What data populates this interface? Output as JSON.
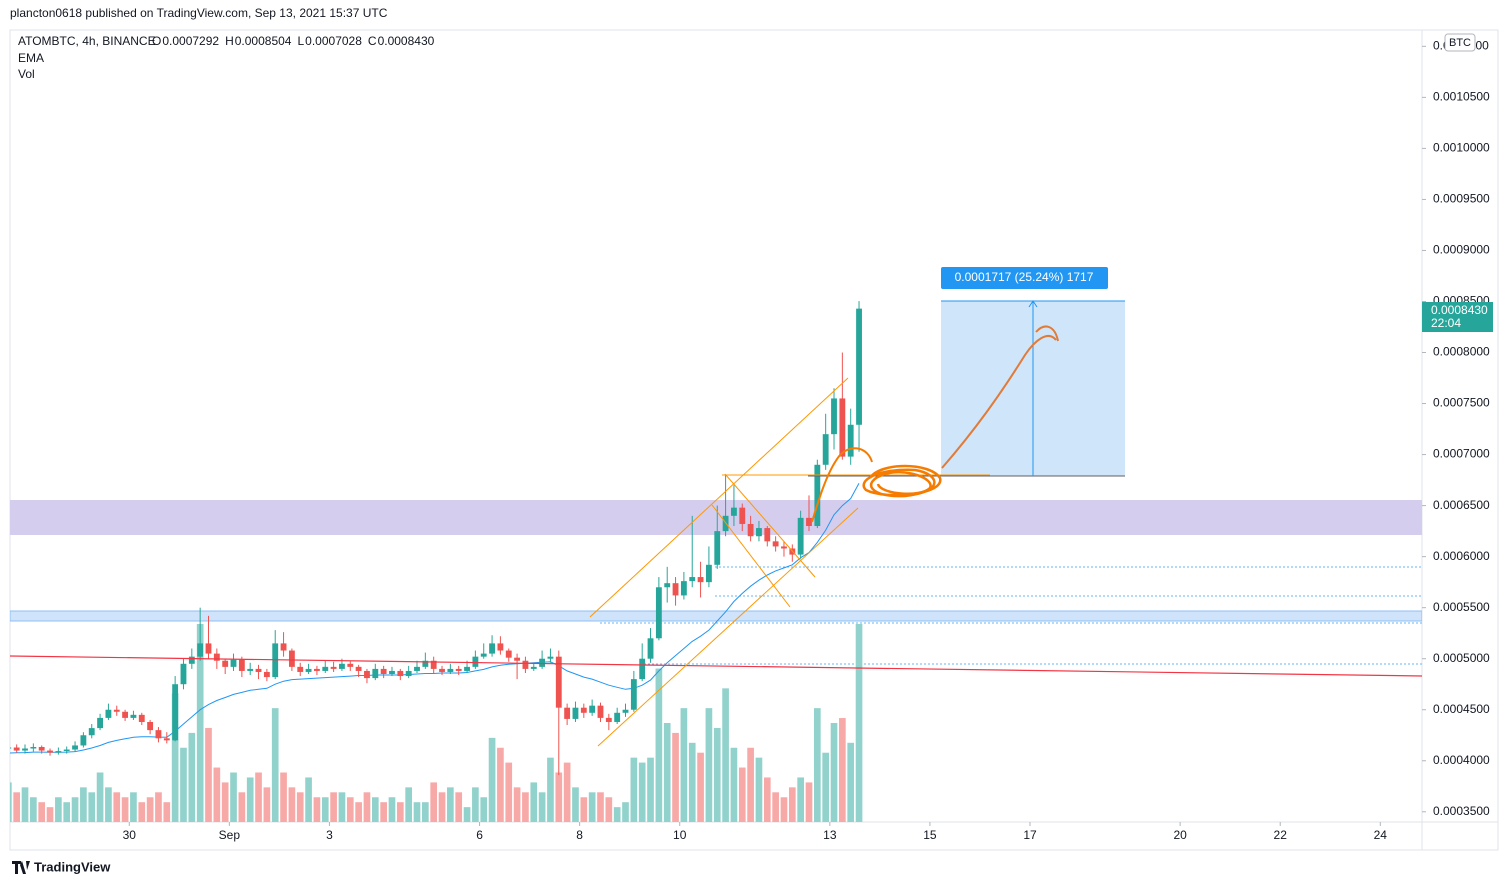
{
  "header": {
    "published": "plancton0618 published on TradingView.com, Sep 13, 2021 15:37 UTC",
    "symbol": "ATOMBTC, 4h, BINANCE",
    "ohlc": [
      {
        "key": "O",
        "value": "0.0007292"
      },
      {
        "key": "H",
        "value": "0.0008504"
      },
      {
        "key": "L",
        "value": "0.0007028"
      },
      {
        "key": "C",
        "value": "0.0008430"
      }
    ],
    "indicators": [
      "EMA",
      "Vol"
    ]
  },
  "footer": {
    "logo": "TradingView"
  },
  "chart_data": {
    "type": "candlestick",
    "currency": "BTC",
    "xlim": [
      0.7,
      170
    ],
    "xticks": [
      {
        "value": 15,
        "label": "30"
      },
      {
        "value": 27,
        "label": "Sep"
      },
      {
        "value": 39,
        "label": "3"
      },
      {
        "value": 57,
        "label": "6"
      },
      {
        "value": 69,
        "label": "8"
      },
      {
        "value": 81,
        "label": "10"
      },
      {
        "value": 99,
        "label": "13"
      },
      {
        "value": 111,
        "label": "15"
      },
      {
        "value": 123,
        "label": "17"
      },
      {
        "value": 141,
        "label": "20"
      },
      {
        "value": 153,
        "label": "22"
      },
      {
        "value": 165,
        "label": "24"
      }
    ],
    "ylim": [
      0.00034,
      0.001116
    ],
    "yticks": [
      {
        "value": 0.00035,
        "label": "0.0003500"
      },
      {
        "value": 0.0004,
        "label": "0.0004000"
      },
      {
        "value": 0.00045,
        "label": "0.0004500"
      },
      {
        "value": 0.0005,
        "label": "0.0005000"
      },
      {
        "value": 0.00055,
        "label": "0.0005500"
      },
      {
        "value": 0.0006,
        "label": "0.0006000"
      },
      {
        "value": 0.00065,
        "label": "0.0006500"
      },
      {
        "value": 0.0007,
        "label": "0.0007000"
      },
      {
        "value": 0.00075,
        "label": "0.0007500"
      },
      {
        "value": 0.0008,
        "label": "0.0008000"
      },
      {
        "value": 0.00085,
        "label": "0.0008500"
      },
      {
        "value": 0.0009,
        "label": "0.0009000"
      },
      {
        "value": 0.00095,
        "label": "0.0009500"
      },
      {
        "value": 0.001,
        "label": "0.0010000"
      },
      {
        "value": 0.00105,
        "label": "0.0010500"
      },
      {
        "value": 0.0011,
        "label": "0.0011000"
      }
    ],
    "candles": [
      [
        0.000412,
        0.000415,
        0.000409,
        0.000413
      ],
      [
        0.000413,
        0.000416,
        0.000408,
        0.00041
      ],
      [
        0.00041,
        0.000416,
        0.000407,
        0.000412
      ],
      [
        0.000412,
        0.000417,
        0.000409,
        0.0004135
      ],
      [
        0.0004135,
        0.000415,
        0.000407,
        0.00041
      ],
      [
        0.00041,
        0.000412,
        0.000405,
        0.000408
      ],
      [
        0.000408,
        0.000413,
        0.000406,
        0.0004095
      ],
      [
        0.0004095,
        0.000414,
        0.000407,
        0.000411
      ],
      [
        0.000411,
        0.000419,
        0.000409,
        0.000415
      ],
      [
        0.000415,
        0.000428,
        0.000413,
        0.000425
      ],
      [
        0.000425,
        0.000436,
        0.000422,
        0.000432
      ],
      [
        0.000432,
        0.000446,
        0.00043,
        0.000442
      ],
      [
        0.000442,
        0.000456,
        0.00044,
        0.00045
      ],
      [
        0.00045,
        0.000454,
        0.000444,
        0.000448
      ],
      [
        0.000448,
        0.00045,
        0.000439,
        0.000442
      ],
      [
        0.000442,
        0.000449,
        0.00044,
        0.000445
      ],
      [
        0.000445,
        0.000447,
        0.000435,
        0.000438
      ],
      [
        0.000438,
        0.00044,
        0.000426,
        0.00043
      ],
      [
        0.00043,
        0.000433,
        0.000418,
        0.000422
      ],
      [
        0.000422,
        0.000428,
        0.000417,
        0.00042
      ],
      [
        0.00042,
        0.000483,
        0.000419,
        0.000475
      ],
      [
        0.000475,
        0.0005,
        0.00047,
        0.000495
      ],
      [
        0.000495,
        0.00051,
        0.00049,
        0.000502
      ],
      [
        0.000502,
        0.00055,
        0.000498,
        0.000515
      ],
      [
        0.000515,
        0.000542,
        0.0005,
        0.000505
      ],
      [
        0.000505,
        0.00051,
        0.00049,
        0.000498
      ],
      [
        0.000498,
        0.0005,
        0.000485,
        0.000492
      ],
      [
        0.000492,
        0.000505,
        0.000488,
        0.000499
      ],
      [
        0.000499,
        0.000502,
        0.000482,
        0.000488
      ],
      [
        0.000488,
        0.000496,
        0.000484,
        0.00049
      ],
      [
        0.00049,
        0.000494,
        0.00048,
        0.000487
      ],
      [
        0.000487,
        0.00049,
        0.000478,
        0.000482
      ],
      [
        0.000482,
        0.000528,
        0.00048,
        0.000515
      ],
      [
        0.000515,
        0.000526,
        0.000502,
        0.000508
      ],
      [
        0.000508,
        0.00051,
        0.000488,
        0.000492
      ],
      [
        0.000492,
        0.000496,
        0.000483,
        0.000487
      ],
      [
        0.000487,
        0.000495,
        0.000485,
        0.00049
      ],
      [
        0.00049,
        0.000493,
        0.000484,
        0.000488
      ],
      [
        0.000488,
        0.000498,
        0.000486,
        0.000492
      ],
      [
        0.000492,
        0.000497,
        0.000487,
        0.00049
      ],
      [
        0.00049,
        0.0005,
        0.000488,
        0.000495
      ],
      [
        0.000495,
        0.000498,
        0.000488,
        0.000492
      ],
      [
        0.000492,
        0.000494,
        0.000482,
        0.000488
      ],
      [
        0.000488,
        0.00049,
        0.000476,
        0.000481
      ],
      [
        0.000481,
        0.000495,
        0.000479,
        0.00049
      ],
      [
        0.00049,
        0.000493,
        0.000481,
        0.000485
      ],
      [
        0.000485,
        0.000492,
        0.000483,
        0.000488
      ],
      [
        0.000488,
        0.00049,
        0.000479,
        0.000483
      ],
      [
        0.000483,
        0.000493,
        0.000481,
        0.000488
      ],
      [
        0.000488,
        0.000498,
        0.000486,
        0.000492
      ],
      [
        0.000492,
        0.000506,
        0.00049,
        0.000498
      ],
      [
        0.000498,
        0.000502,
        0.000486,
        0.00049
      ],
      [
        0.00049,
        0.000493,
        0.000484,
        0.000487
      ],
      [
        0.000487,
        0.000495,
        0.000485,
        0.00049
      ],
      [
        0.00049,
        0.000493,
        0.000484,
        0.000488
      ],
      [
        0.000488,
        0.000498,
        0.000486,
        0.000492
      ],
      [
        0.000492,
        0.000508,
        0.00049,
        0.000502
      ],
      [
        0.000502,
        0.000515,
        0.0005,
        0.000505
      ],
      [
        0.000505,
        0.000523,
        0.000502,
        0.000515
      ],
      [
        0.000515,
        0.000522,
        0.000504,
        0.000508
      ],
      [
        0.000508,
        0.00051,
        0.000497,
        0.000501
      ],
      [
        0.000501,
        0.000505,
        0.00048,
        0.000498
      ],
      [
        0.000498,
        0.000502,
        0.000486,
        0.00049
      ],
      [
        0.00049,
        0.000496,
        0.000488,
        0.000492
      ],
      [
        0.000492,
        0.000508,
        0.00049,
        0.0005
      ],
      [
        0.0005,
        0.00051,
        0.000496,
        0.000502
      ],
      [
        0.000502,
        0.000508,
        0.000386,
        0.000452
      ],
      [
        0.000452,
        0.000456,
        0.000435,
        0.000441
      ],
      [
        0.000441,
        0.000458,
        0.000438,
        0.000452
      ],
      [
        0.000452,
        0.000456,
        0.000442,
        0.000447
      ],
      [
        0.000447,
        0.00046,
        0.000444,
        0.000454
      ],
      [
        0.000454,
        0.000457,
        0.000438,
        0.000442
      ],
      [
        0.000442,
        0.000446,
        0.00043,
        0.000438
      ],
      [
        0.000438,
        0.000452,
        0.000436,
        0.000447
      ],
      [
        0.000447,
        0.000456,
        0.000443,
        0.00045
      ],
      [
        0.00045,
        0.000488,
        0.000448,
        0.00048
      ],
      [
        0.00048,
        0.000515,
        0.000478,
        0.0005
      ],
      [
        0.0005,
        0.00053,
        0.000496,
        0.00052
      ],
      [
        0.00052,
        0.00058,
        0.000518,
        0.00057
      ],
      [
        0.00057,
        0.00059,
        0.000555,
        0.000574
      ],
      [
        0.000574,
        0.00058,
        0.000552,
        0.000562
      ],
      [
        0.000562,
        0.000585,
        0.000558,
        0.000576
      ],
      [
        0.000576,
        0.00064,
        0.00057,
        0.00058
      ],
      [
        0.00058,
        0.000595,
        0.00056,
        0.000575
      ],
      [
        0.000575,
        0.00061,
        0.00057,
        0.000592
      ],
      [
        0.000592,
        0.00065,
        0.000588,
        0.000625
      ],
      [
        0.000625,
        0.00068,
        0.00062,
        0.00064
      ],
      [
        0.00064,
        0.00067,
        0.00063,
        0.000648
      ],
      [
        0.000648,
        0.000652,
        0.000625,
        0.000632
      ],
      [
        0.000632,
        0.00064,
        0.000615,
        0.00062
      ],
      [
        0.00062,
        0.000635,
        0.000615,
        0.000628
      ],
      [
        0.000628,
        0.00063,
        0.00061,
        0.000615
      ],
      [
        0.000615,
        0.00062,
        0.000605,
        0.00061
      ],
      [
        0.00061,
        0.000615,
        0.0006,
        0.000608
      ],
      [
        0.000608,
        0.000612,
        0.000595,
        0.000602
      ],
      [
        0.000602,
        0.000645,
        0.000598,
        0.000638
      ],
      [
        0.000638,
        0.00066,
        0.000625,
        0.00063
      ],
      [
        0.00063,
        0.000695,
        0.000628,
        0.00069
      ],
      [
        0.00069,
        0.00074,
        0.000685,
        0.00072
      ],
      [
        0.00072,
        0.000765,
        0.000705,
        0.000755
      ],
      [
        0.000755,
        0.0008,
        0.000695,
        0.000698
      ],
      [
        0.000698,
        0.000745,
        0.00069,
        0.0007292
      ],
      [
        0.0007292,
        0.0008504,
        0.0007028,
        0.000843
      ]
    ],
    "volume": [
      40,
      30,
      35,
      25,
      20,
      15,
      25,
      20,
      25,
      35,
      30,
      50,
      35,
      30,
      25,
      30,
      20,
      25,
      30,
      20,
      130,
      75,
      90,
      200,
      95,
      55,
      40,
      50,
      30,
      45,
      50,
      35,
      115,
      50,
      35,
      30,
      45,
      25,
      25,
      30,
      30,
      25,
      20,
      30,
      25,
      20,
      25,
      20,
      35,
      20,
      20,
      40,
      30,
      35,
      30,
      15,
      35,
      25,
      85,
      75,
      60,
      35,
      30,
      40,
      30,
      65,
      50,
      60,
      35,
      25,
      30,
      30,
      25,
      15,
      20,
      65,
      60,
      65,
      155,
      100,
      90,
      115,
      80,
      70,
      115,
      95,
      135,
      75,
      55,
      75,
      65,
      45,
      30,
      25,
      35,
      45,
      40,
      115,
      70,
      100,
      105,
      80,
      200
    ],
    "vlim": [
      0,
      800
    ],
    "ema": [
      0.0004075,
      0.0004078,
      0.000408,
      0.0004085,
      0.0004085,
      0.0004083,
      0.0004083,
      0.0004085,
      0.000409,
      0.0004105,
      0.0004125,
      0.000415,
      0.000418,
      0.00042,
      0.0004215,
      0.000423,
      0.0004235,
      0.0004235,
      0.0004232,
      0.000423,
      0.000429,
      0.000436,
      0.000443,
      0.00045,
      0.000455,
      0.000459,
      0.000462,
      0.000465,
      0.000467,
      0.000469,
      0.00047,
      0.000471,
      0.000475,
      0.000478,
      0.0004795,
      0.00048,
      0.0004805,
      0.000481,
      0.0004815,
      0.000482,
      0.0004825,
      0.000483,
      0.0004835,
      0.0004835,
      0.000484,
      0.000484,
      0.000484,
      0.000484,
      0.0004845,
      0.000485,
      0.0004855,
      0.0004855,
      0.000486,
      0.000486,
      0.000486,
      0.0004865,
      0.000488,
      0.0004895,
      0.000492,
      0.0004935,
      0.0004945,
      0.000495,
      0.0004955,
      0.000496,
      0.0004965,
      0.000497,
      0.000493,
      0.000488,
      0.000485,
      0.000482,
      0.00048,
      0.000477,
      0.000474,
      0.000472,
      0.00047,
      0.000471,
      0.000474,
      0.000479,
      0.000488,
      0.000496,
      0.000503,
      0.00051,
      0.000517,
      0.000522,
      0.000528,
      0.000537,
      0.000546,
      0.000556,
      0.000564,
      0.000571,
      0.000577,
      0.000582,
      0.000586,
      0.000589,
      0.000592,
      0.000599,
      0.000604,
      0.000614,
      0.000626,
      0.000641,
      0.00065,
      0.000657,
      0.000672
    ],
    "colors": {
      "up": "#26a69a",
      "down": "#ef5350",
      "up_volume": "#92d2cc",
      "down_volume": "#f7a9a7",
      "ema": "#2196f3"
    },
    "last_price_label": "0.0008430",
    "countdown": "22:04",
    "measure_label": "0.0001717 (25.24%) 1717"
  }
}
